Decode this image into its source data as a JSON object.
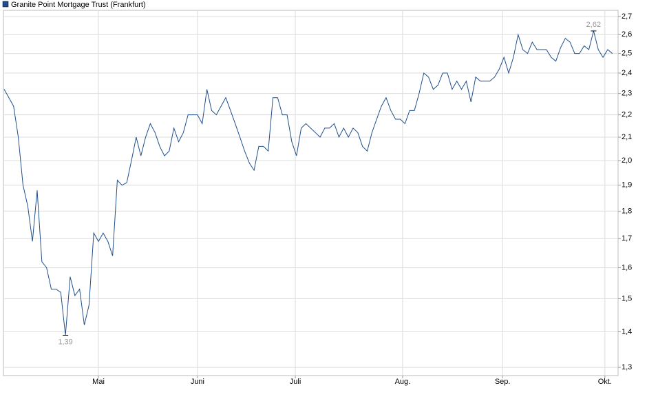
{
  "chart_data": {
    "type": "line",
    "log_scale": true,
    "grid": true,
    "legend": "top-left",
    "series": [
      {
        "name": "Granite Point Mortgage Trust (Frankfurt)",
        "color": "#1f4e8c",
        "values": [
          2.32,
          2.28,
          2.24,
          2.1,
          1.9,
          1.82,
          1.69,
          1.88,
          1.62,
          1.6,
          1.53,
          1.53,
          1.52,
          1.39,
          1.57,
          1.51,
          1.53,
          1.42,
          1.48,
          1.72,
          1.69,
          1.72,
          1.69,
          1.64,
          1.92,
          1.9,
          1.91,
          2.0,
          2.1,
          2.02,
          2.1,
          2.16,
          2.12,
          2.06,
          2.02,
          2.04,
          2.14,
          2.08,
          2.12,
          2.2,
          2.2,
          2.2,
          2.16,
          2.32,
          2.22,
          2.2,
          2.24,
          2.28,
          2.22,
          2.16,
          2.1,
          2.04,
          1.99,
          1.96,
          2.06,
          2.06,
          2.04,
          2.28,
          2.28,
          2.2,
          2.2,
          2.08,
          2.02,
          2.14,
          2.16,
          2.14,
          2.12,
          2.1,
          2.14,
          2.14,
          2.16,
          2.1,
          2.14,
          2.1,
          2.14,
          2.12,
          2.06,
          2.04,
          2.12,
          2.18,
          2.24,
          2.28,
          2.22,
          2.18,
          2.18,
          2.16,
          2.22,
          2.22,
          2.3,
          2.4,
          2.38,
          2.32,
          2.34,
          2.4,
          2.4,
          2.32,
          2.36,
          2.32,
          2.36,
          2.26,
          2.38,
          2.36,
          2.36,
          2.36,
          2.38,
          2.42,
          2.48,
          2.4,
          2.48,
          2.6,
          2.52,
          2.5,
          2.56,
          2.52,
          2.52,
          2.52,
          2.48,
          2.46,
          2.53,
          2.58,
          2.56,
          2.5,
          2.5,
          2.54,
          2.52,
          2.62,
          2.52,
          2.48,
          2.52,
          2.5
        ]
      }
    ],
    "xlim": [
      -0.15,
      130.2
    ],
    "xticks": [
      {
        "value": 20,
        "label": "Mai"
      },
      {
        "value": 41,
        "label": "Juni"
      },
      {
        "value": 61.75,
        "label": "Juli"
      },
      {
        "value": 84.5,
        "label": "Aug."
      },
      {
        "value": 105.7,
        "label": "Sep."
      },
      {
        "value": 127.4,
        "label": "Okt."
      }
    ],
    "ylim": [
      1.278,
      2.735
    ],
    "yticks": [
      {
        "value": 1.3,
        "label": "1,3"
      },
      {
        "value": 1.4,
        "label": "1,4"
      },
      {
        "value": 1.5,
        "label": "1,5"
      },
      {
        "value": 1.6,
        "label": "1,6"
      },
      {
        "value": 1.7,
        "label": "1,7"
      },
      {
        "value": 1.8,
        "label": "1,8"
      },
      {
        "value": 1.9,
        "label": "1,9"
      },
      {
        "value": 2.0,
        "label": "2,0"
      },
      {
        "value": 2.1,
        "label": "2,1"
      },
      {
        "value": 2.2,
        "label": "2,2"
      },
      {
        "value": 2.3,
        "label": "2,3"
      },
      {
        "value": 2.4,
        "label": "2,4"
      },
      {
        "value": 2.5,
        "label": "2,5"
      },
      {
        "value": 2.6,
        "label": "2,6"
      },
      {
        "value": 2.7,
        "label": "2,7"
      }
    ],
    "annotations": [
      {
        "index": 13,
        "label": "1,39",
        "position": "below"
      },
      {
        "index": 125,
        "label": "2,62",
        "position": "above"
      }
    ]
  }
}
